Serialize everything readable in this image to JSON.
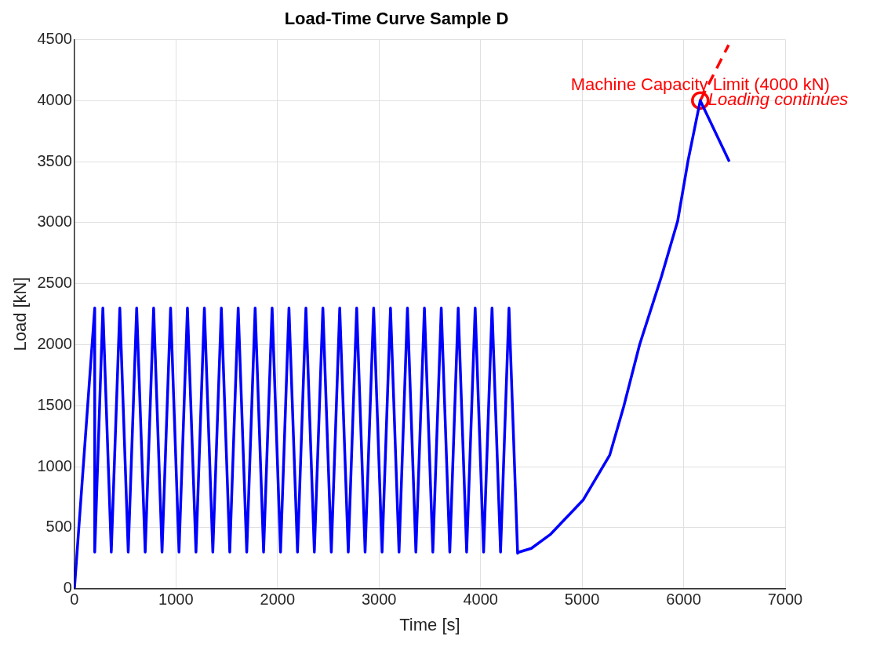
{
  "chart_data": {
    "type": "line",
    "title": "Load-Time Curve Sample D",
    "xlabel": "Time [s]",
    "ylabel": "Load [kN]",
    "xlim": [
      0,
      7000
    ],
    "xticks": [
      0,
      1000,
      2000,
      3000,
      4000,
      5000,
      6000,
      7000
    ],
    "ylim": [
      0,
      4500
    ],
    "yticks": [
      0,
      500,
      1000,
      1500,
      2000,
      2500,
      3000,
      3500,
      4000,
      4500
    ],
    "grid": true,
    "legend": false,
    "marker": "none",
    "line_style": "solid",
    "series": [
      {
        "color": "#0000ff",
        "x": [
          0,
          200,
          200,
          280,
          363,
          447,
          530,
          613,
          697,
          780,
          863,
          947,
          1030,
          1113,
          1197,
          1280,
          1363,
          1447,
          1530,
          1613,
          1697,
          1780,
          1863,
          1947,
          2030,
          2113,
          2197,
          2280,
          2363,
          2447,
          2530,
          2613,
          2697,
          2780,
          2863,
          2947,
          3030,
          3113,
          3197,
          3280,
          3363,
          3447,
          3530,
          3613,
          3697,
          3780,
          3863,
          3947,
          4030,
          4113,
          4197,
          4280,
          4365,
          4372,
          4500,
          4691,
          5009,
          5272,
          5407,
          5567,
          5782,
          5941,
          6044,
          6164,
          6450
        ],
        "values": [
          0,
          2300,
          300,
          2300,
          300,
          2300,
          300,
          2300,
          300,
          2300,
          300,
          2300,
          300,
          2300,
          300,
          2300,
          300,
          2300,
          300,
          2300,
          300,
          2300,
          300,
          2300,
          300,
          2300,
          300,
          2300,
          300,
          2300,
          300,
          2300,
          300,
          2300,
          300,
          2300,
          300,
          2300,
          300,
          2300,
          300,
          2300,
          300,
          2300,
          300,
          2300,
          300,
          2300,
          300,
          2300,
          300,
          2300,
          290,
          298,
          330,
          447,
          725,
          1094,
          1483,
          2001,
          2558,
          3011,
          3509,
          4000,
          3500
        ]
      },
      {
        "color": "#ff0000",
        "line_style": "dashed",
        "x": [
          6164,
          6443
        ],
        "values": [
          4000,
          4455
        ]
      },
      {
        "type": "scatter",
        "color": "#ff0000",
        "marker": "circle",
        "x": [
          6164
        ],
        "values": [
          4000
        ]
      }
    ],
    "annotations": [
      {
        "text": "Machine Capacity Limit (4000 kN)",
        "x": 6164,
        "y": 4000
      },
      {
        "text": "Loading continues",
        "x": 6164,
        "y": 4000
      }
    ]
  }
}
